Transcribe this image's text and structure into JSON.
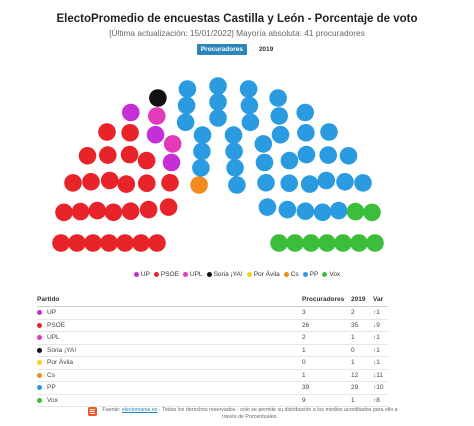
{
  "header": {
    "title": "ElectoPromedio de encuestas Castilla y León - Porcentaje de voto",
    "subtitle": "[Última actualización: 15/01/2022] Mayoría absoluta: 41 procuradores"
  },
  "tabs": [
    {
      "label": "Procuradores",
      "active": true
    },
    {
      "label": "2019",
      "active": false
    }
  ],
  "chart_data": {
    "type": "hemicycle",
    "total_seats": 81,
    "seat_order": [
      "PSOE",
      "UP",
      "UPL",
      "Soria ¡YA!",
      "Por Ávila",
      "Cs",
      "PP",
      "Vox"
    ],
    "parties": [
      {
        "name": "UP",
        "color": "#c42fd6",
        "seats": 3,
        "seats_2019": 2,
        "change": "↑1",
        "trend": "up"
      },
      {
        "name": "PSOE",
        "color": "#e8232a",
        "seats": 26,
        "seats_2019": 35,
        "change": "↓9",
        "trend": "down"
      },
      {
        "name": "UPL",
        "color": "#e23ab8",
        "seats": 2,
        "seats_2019": 1,
        "change": "↑1",
        "trend": "up"
      },
      {
        "name": "Soria ¡YA!",
        "color": "#111111",
        "seats": 1,
        "seats_2019": 0,
        "change": "↑1",
        "trend": "up"
      },
      {
        "name": "Por Ávila",
        "color": "#f2d31b",
        "seats": 0,
        "seats_2019": 1,
        "change": "↓1",
        "trend": "down"
      },
      {
        "name": "Cs",
        "color": "#f28a1c",
        "seats": 1,
        "seats_2019": 12,
        "change": "↓11",
        "trend": "down"
      },
      {
        "name": "PP",
        "color": "#2a9be0",
        "seats": 39,
        "seats_2019": 29,
        "change": "↑10",
        "trend": "up"
      },
      {
        "name": "Vox",
        "color": "#3cbd3c",
        "seats": 9,
        "seats_2019": 1,
        "change": "↑8",
        "trend": "up"
      }
    ]
  },
  "table": {
    "headers": {
      "party": "Partido",
      "proc": "Procuradores",
      "y2019": "2019",
      "var": "Var"
    }
  },
  "footer": {
    "prefix": "Fuente: ",
    "link": "electomania.es",
    "text": " - Todos los derechos reservados - solo se permite su distribución a los medios acreditados para ello a través de Porcentuales."
  }
}
